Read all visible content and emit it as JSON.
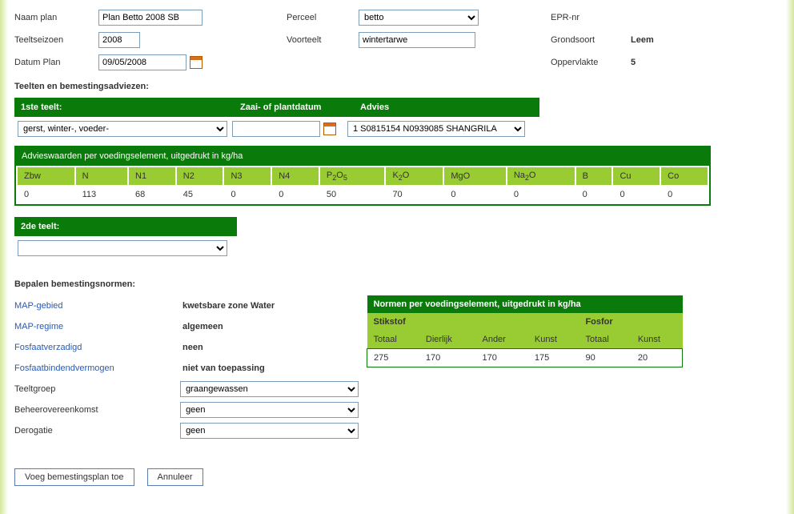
{
  "top": {
    "naam_plan_label": "Naam plan",
    "naam_plan_value": "Plan Betto 2008 SB",
    "teeltseizoen_label": "Teeltseizoen",
    "teeltseizoen_value": "2008",
    "datum_plan_label": "Datum Plan",
    "datum_plan_value": "09/05/2008",
    "perceel_label": "Perceel",
    "perceel_value": "betto",
    "voorteelt_label": "Voorteelt",
    "voorteelt_value": "wintertarwe",
    "epr_label": "EPR-nr",
    "epr_value": "",
    "grondsoort_label": "Grondsoort",
    "grondsoort_value": "Leem",
    "oppervlakte_label": "Oppervlakte",
    "oppervlakte_value": "5"
  },
  "teelten_section_title": "Teelten en bemestingsadviezen:",
  "teelt1": {
    "header_1ste": "1ste teelt:",
    "header_zaai": "Zaai- of plantdatum",
    "header_advies": "Advies",
    "crop_value": "gerst, winter-, voeder-",
    "zaai_value": "",
    "advies_value": "1 S0815154 N0939085 SHANGRILA"
  },
  "advieswaarden": {
    "title": "Advieswaarden per voedingselement, uitgedrukt in kg/ha",
    "headers": [
      "Zbw",
      "N",
      "N1",
      "N2",
      "N3",
      "N4",
      "P2O5",
      "K2O",
      "MgO",
      "Na2O",
      "B",
      "Cu",
      "Co"
    ],
    "values": [
      "0",
      "113",
      "68",
      "45",
      "0",
      "0",
      "50",
      "70",
      "0",
      "0",
      "0",
      "0",
      "0"
    ]
  },
  "teelt2": {
    "header": "2de teelt:",
    "value": ""
  },
  "normen_section_title": "Bepalen bemestingsnormen:",
  "normen_left": {
    "map_gebied_label": "MAP-gebied",
    "map_gebied_value": "kwetsbare zone Water",
    "map_regime_label": "MAP-regime",
    "map_regime_value": "algemeen",
    "fosfaatverzadigd_label": "Fosfaatverzadigd",
    "fosfaatverzadigd_value": "neen",
    "fosfaatbindend_label": "Fosfaatbindendvermogen",
    "fosfaatbindend_value": "niet van toepassing",
    "teeltgroep_label": "Teeltgroep",
    "teeltgroep_value": "graangewassen",
    "beheer_label": "Beheerovereenkomst",
    "beheer_value": "geen",
    "derogatie_label": "Derogatie",
    "derogatie_value": "geen"
  },
  "normen_table": {
    "title": "Normen per voedingselement, uitgedrukt in kg/ha",
    "stikstof_label": "Stikstof",
    "fosfor_label": "Fosfor",
    "h_totaal": "Totaal",
    "h_dierlijk": "Dierlijk",
    "h_ander": "Ander",
    "h_kunst": "Kunst",
    "stikstof_vals": [
      "275",
      "170",
      "170",
      "175"
    ],
    "fosfor_vals": [
      "90",
      "20"
    ]
  },
  "buttons": {
    "voeg": "Voeg bemestingsplan toe",
    "annuleer": "Annuleer"
  },
  "colors": {
    "dark_green": "#0a7a0a",
    "light_green": "#99cc33"
  }
}
